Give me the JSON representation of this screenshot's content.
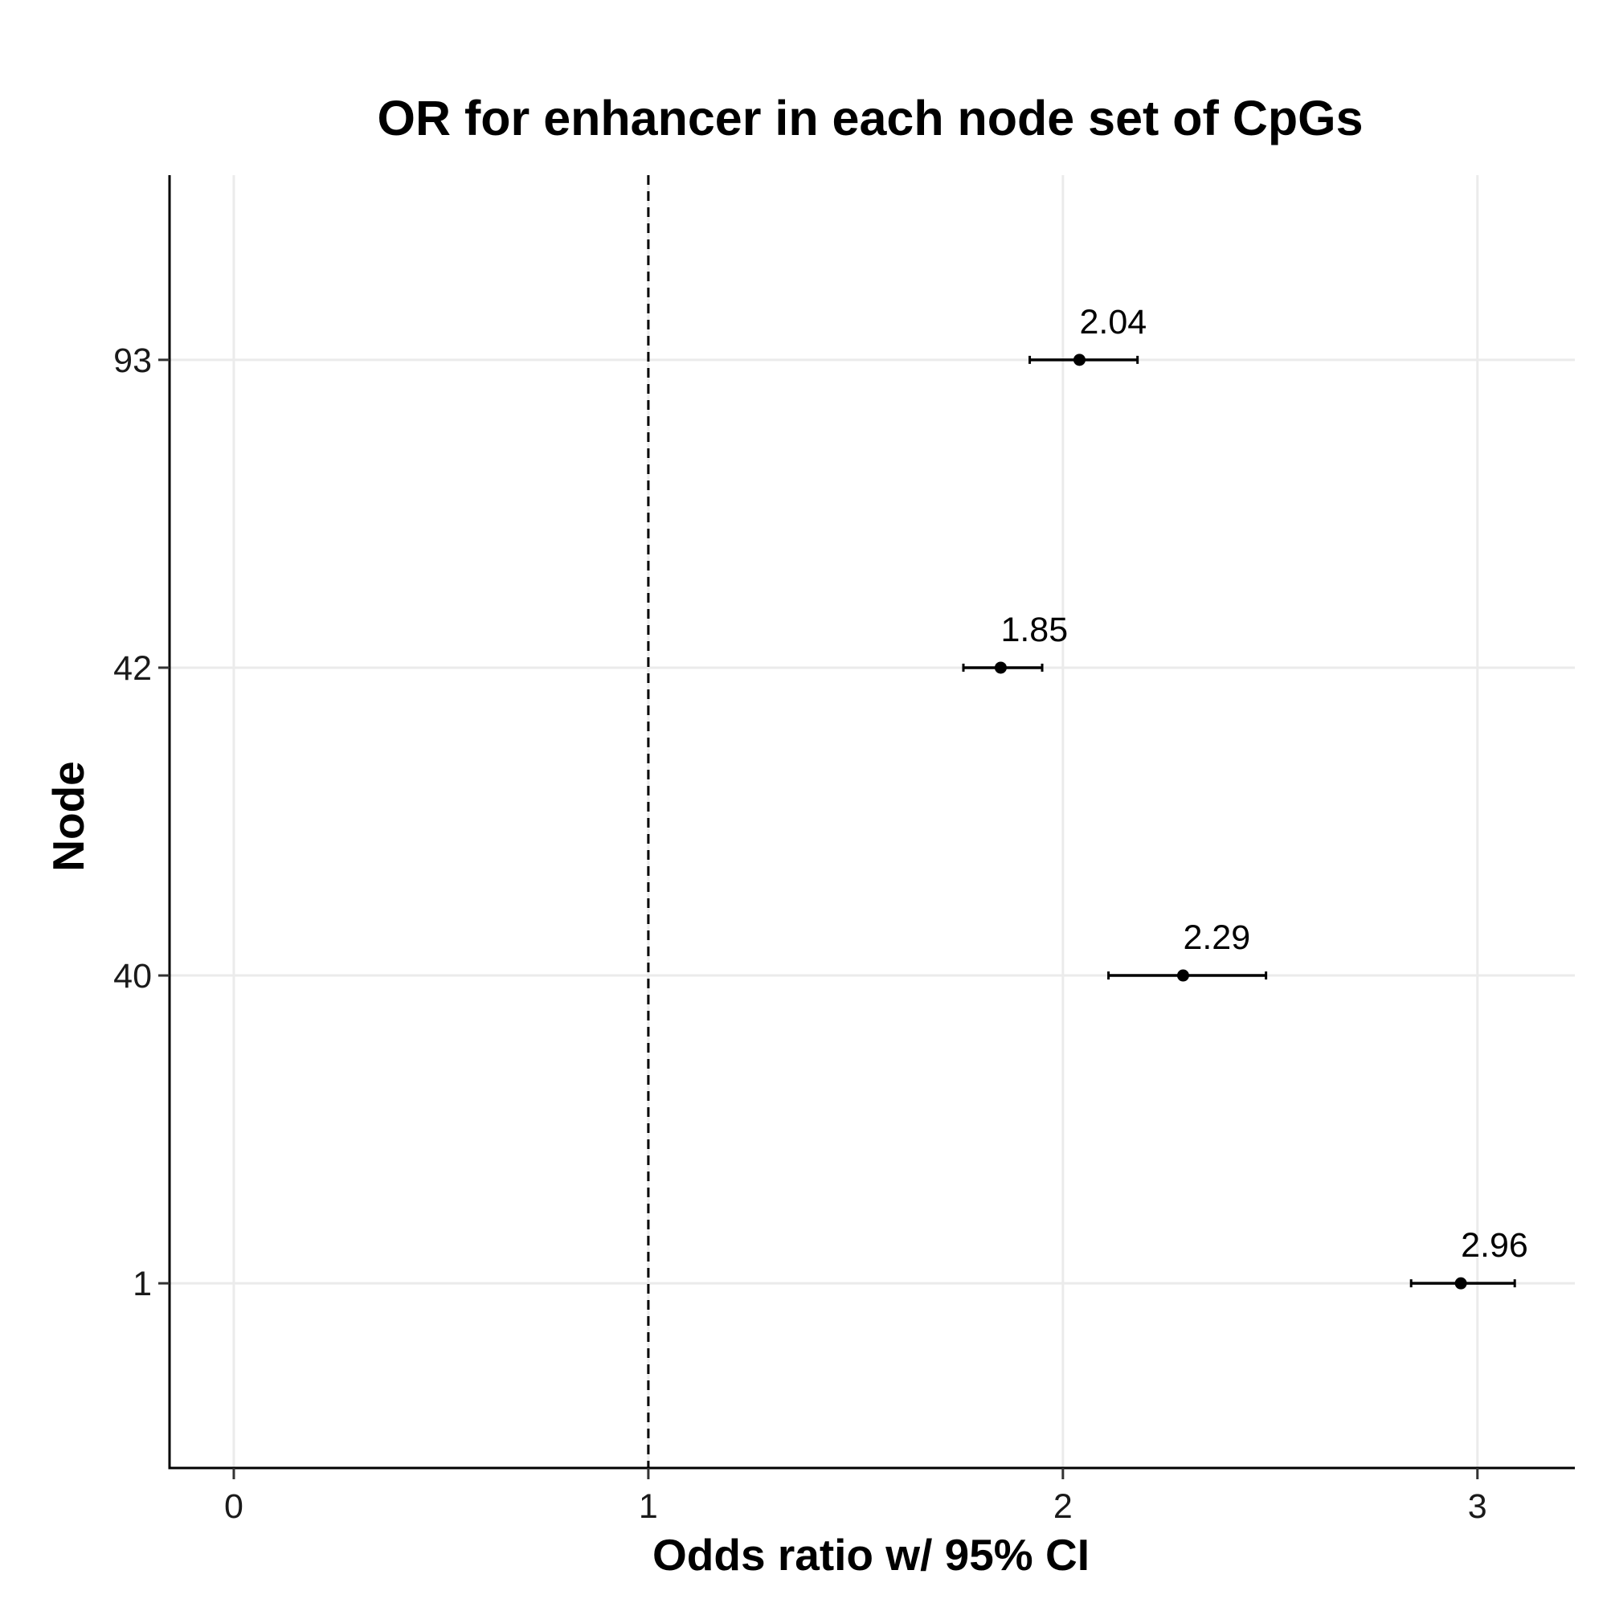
{
  "chart_data": {
    "type": "scatter",
    "title": "OR for enhancer in each node set of CpGs",
    "xlabel": "Odds ratio w/ 95% CI",
    "ylabel": "Node",
    "xlim": [
      -0.155,
      3.235
    ],
    "x_ticks": [
      0,
      1,
      2,
      3
    ],
    "categories": [
      "1",
      "40",
      "42",
      "93"
    ],
    "points": [
      {
        "node": "93",
        "or": 2.04,
        "ci_low": 1.92,
        "ci_high": 2.18,
        "label": "2.04"
      },
      {
        "node": "42",
        "or": 1.85,
        "ci_low": 1.76,
        "ci_high": 1.95,
        "label": "1.85"
      },
      {
        "node": "40",
        "or": 2.29,
        "ci_low": 2.11,
        "ci_high": 2.49,
        "label": "2.29"
      },
      {
        "node": "1",
        "or": 2.96,
        "ci_low": 2.84,
        "ci_high": 3.09,
        "label": "2.96"
      }
    ],
    "reference_line": {
      "x": 1,
      "style": "dashed"
    },
    "grid": true,
    "legend": "none"
  }
}
